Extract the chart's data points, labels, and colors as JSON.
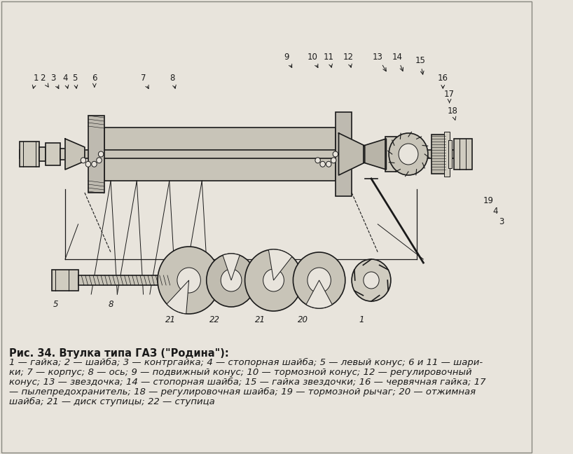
{
  "title": "Рис. 34. Втулка типа ГАЗ (\"Родина\"):",
  "caption_lines": [
    "1 — гайка; 2 — шайба; 3 — контргайка; 4 — стопорная шайба; 5 — левый конус; 6 и 11 — шари-",
    "ки; 7 — корпус; 8 — ось; 9 — подвижный конус; 10 — тормозной конус; 12 — регулировочный",
    "конус; 13 — звездочка; 14 — стопорная шайба; 15 — гайка звездочки; 16 — червячная гайка; 17",
    "— пылепредохранитель; 18 — регулировочная шайба; 19 — тормозной рычаг; 20 — отжимная",
    "шайба; 21 — диск ступицы; 22 — ступица"
  ],
  "bg_color": "#e8e4dc",
  "text_color": "#1a1a1a",
  "title_fontsize": 10.5,
  "caption_fontsize": 9.5,
  "fig_width": 8.18,
  "fig_height": 6.48
}
